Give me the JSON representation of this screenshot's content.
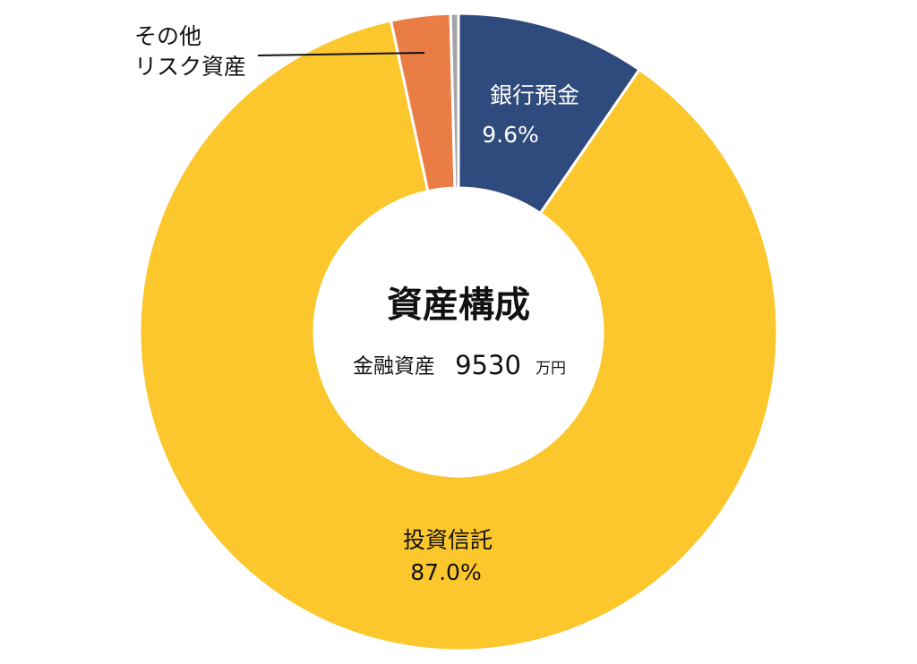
{
  "chart_data": {
    "type": "donut",
    "categories": [
      "銀行預金",
      "投資信託",
      "その他\nリスク資産",
      null
    ],
    "values": [
      9.6,
      87.0,
      3.0,
      0.4
    ],
    "value_labels": [
      "9.6%",
      "87.0%",
      null,
      null
    ],
    "colors": [
      "#2f4a7c",
      "#fcc72c",
      "#ea7d45",
      "#a5a5a5"
    ],
    "center": {
      "title": "資産構成",
      "label": "金融資産",
      "amount": 9530,
      "unit": "万円"
    }
  }
}
